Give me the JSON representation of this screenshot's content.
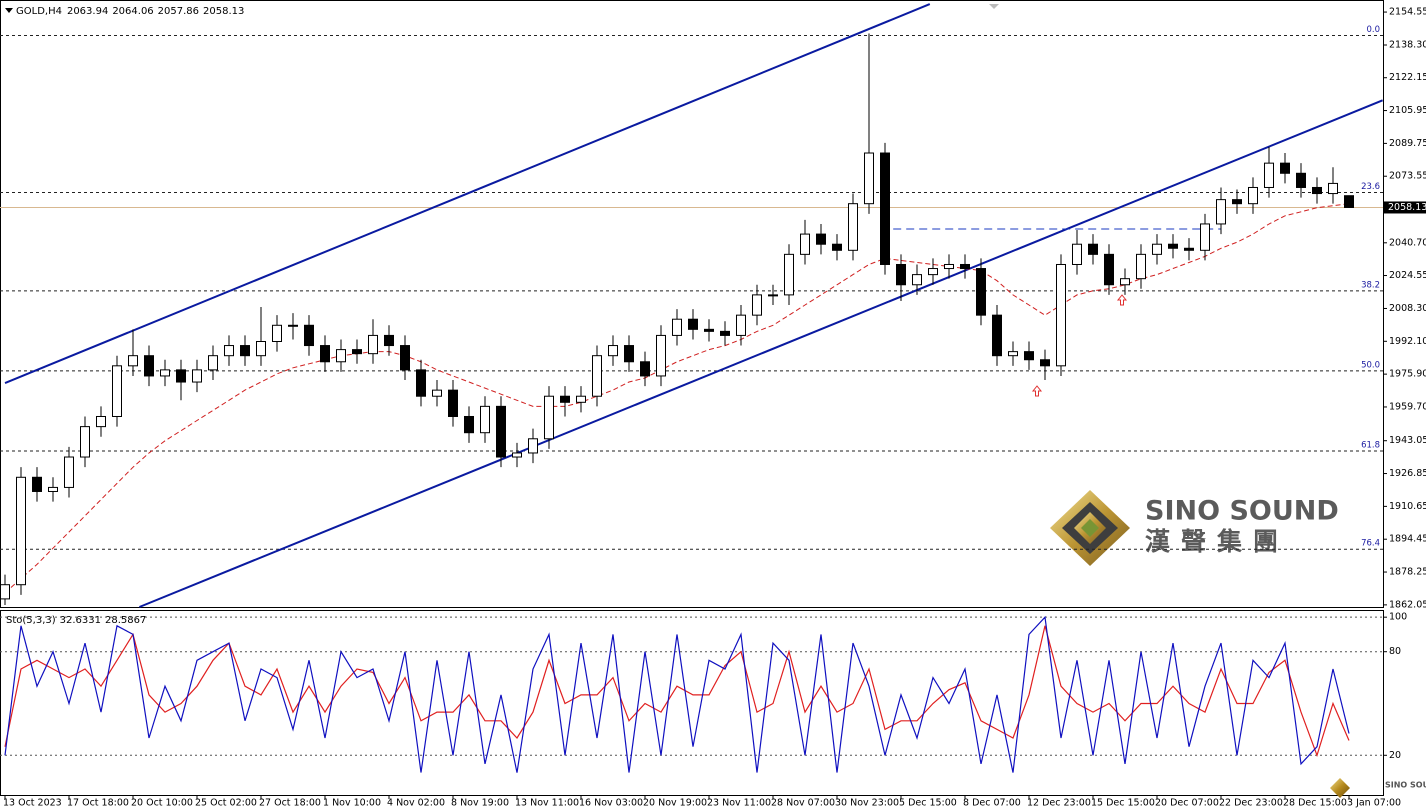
{
  "chart_data": {
    "type": "candlestick",
    "title": "GOLD,H4",
    "categories": [
      "13 Oct 2023",
      null,
      null,
      null,
      "17 Oct 18:00",
      null,
      null,
      null,
      "20 Oct 10:00",
      null,
      null,
      null,
      "25 Oct 02:00",
      null,
      null,
      null,
      "27 Oct 18:00",
      null,
      null,
      null,
      "1 Nov 10:00",
      null,
      null,
      null,
      "4 Nov 02:00",
      null,
      null,
      null,
      "8 Nov 19:00",
      null,
      null,
      null,
      "13 Nov 11:00",
      null,
      null,
      null,
      "16 Nov 03:00",
      null,
      null,
      null,
      "20 Nov 19:00",
      null,
      null,
      null,
      "23 Nov 11:00",
      null,
      null,
      null,
      "28 Nov 07:00",
      null,
      null,
      null,
      "30 Nov 23:00",
      null,
      null,
      null,
      "5 Dec 15:00",
      null,
      null,
      null,
      "8 Dec 07:00",
      null,
      null,
      null,
      "12 Dec 23:00",
      null,
      null,
      null,
      "15 Dec 15:00",
      null,
      null,
      null,
      "20 Dec 07:00",
      null,
      null,
      null,
      "22 Dec 23:00",
      null,
      null,
      null,
      "28 Dec 15:00",
      null,
      null,
      null,
      "3 Jan 07:00"
    ],
    "open": [
      1865,
      1872,
      1925,
      1918,
      1920,
      1935,
      1950,
      1955,
      1980,
      1985,
      1975,
      1978,
      1972,
      1978,
      1985,
      1990,
      1985,
      1992,
      2000,
      2000,
      1990,
      1982,
      1988,
      1986,
      1995,
      1990,
      1978,
      1965,
      1968,
      1955,
      1947,
      1960,
      1935,
      1937,
      1944,
      1965,
      1962,
      1965,
      1985,
      1990,
      1982,
      1975,
      1995,
      2003,
      1998,
      1997,
      1995,
      2005,
      2015,
      2015,
      2035,
      2045,
      2040,
      2037,
      2060,
      2085,
      2030,
      2020,
      2025,
      2028,
      2030,
      2028,
      2005,
      1985,
      1987,
      1983,
      1980,
      2030,
      2040,
      2035,
      2020,
      2023,
      2035,
      2040,
      2038,
      2037,
      2050,
      2062,
      2060,
      2068,
      2080,
      2075,
      2068,
      2065,
      2063.94
    ],
    "high": [
      1877,
      1930,
      1930,
      1925,
      1940,
      1955,
      1960,
      1985,
      1998,
      1990,
      1983,
      1983,
      1983,
      1990,
      1995,
      1995,
      2009,
      2005,
      2006,
      2005,
      1995,
      1993,
      1993,
      2003,
      2000,
      1995,
      1983,
      1973,
      1973,
      1960,
      1965,
      1965,
      1942,
      1949,
      1970,
      1970,
      1970,
      1990,
      1995,
      1995,
      1987,
      2000,
      2008,
      2008,
      2003,
      2002,
      2010,
      2020,
      2020,
      2040,
      2052,
      2050,
      2045,
      2065,
      2144,
      2090,
      2035,
      2030,
      2033,
      2035,
      2035,
      2033,
      2010,
      1992,
      1992,
      1988,
      2035,
      2047,
      2045,
      2040,
      2028,
      2040,
      2045,
      2045,
      2043,
      2055,
      2068,
      2067,
      2073,
      2088,
      2085,
      2080,
      2073,
      2078,
      2064.06
    ],
    "low": [
      1862,
      1867,
      1913,
      1913,
      1915,
      1930,
      1945,
      1950,
      1975,
      1970,
      1970,
      1963,
      1967,
      1973,
      1980,
      1980,
      1980,
      1987,
      1993,
      1985,
      1977,
      1977,
      1981,
      1981,
      1985,
      1973,
      1960,
      1960,
      1950,
      1942,
      1942,
      1930,
      1930,
      1932,
      1939,
      1955,
      1957,
      1960,
      1980,
      1977,
      1970,
      1970,
      1990,
      1993,
      1992,
      1990,
      1990,
      2000,
      2010,
      2010,
      2030,
      2035,
      2032,
      2032,
      2055,
      2025,
      2012,
      2015,
      2020,
      2023,
      2023,
      2000,
      1980,
      1980,
      1978,
      1973,
      1975,
      2025,
      2030,
      2015,
      2015,
      2018,
      2030,
      2033,
      2032,
      2032,
      2045,
      2055,
      2055,
      2063,
      2070,
      2063,
      2060,
      2060,
      2057.86
    ],
    "close": [
      1872,
      1925,
      1918,
      1920,
      1935,
      1950,
      1955,
      1980,
      1985,
      1975,
      1978,
      1972,
      1978,
      1985,
      1990,
      1985,
      1992,
      2000,
      2000,
      1990,
      1982,
      1988,
      1986,
      1995,
      1990,
      1978,
      1965,
      1968,
      1955,
      1947,
      1960,
      1935,
      1937,
      1944,
      1965,
      1962,
      1965,
      1985,
      1990,
      1982,
      1975,
      1995,
      2003,
      1998,
      1997,
      1995,
      2005,
      2015,
      2015,
      2035,
      2045,
      2040,
      2037,
      2060,
      2085,
      2030,
      2020,
      2025,
      2028,
      2030,
      2028,
      2005,
      1985,
      1987,
      1983,
      1980,
      2030,
      2040,
      2035,
      2020,
      2023,
      2035,
      2040,
      2038,
      2037,
      2050,
      2062,
      2060,
      2068,
      2080,
      2075,
      2068,
      2065,
      2070,
      2058.13
    ],
    "color_up": "#ffffff",
    "color_down": "#000000",
    "ylim": [
      1861,
      2160.5
    ],
    "yticks": [
      2154.55,
      {
        "value": 2138.3,
        "label": "2138.30"
      },
      2122.15,
      2105.95,
      2089.75,
      2073.55,
      {
        "value": 2040.7,
        "label": "2040.70"
      },
      2024.55,
      {
        "value": 2008.3,
        "label": "2008.30"
      },
      {
        "value": 1992.1,
        "label": "1992.10"
      },
      {
        "value": 1975.9,
        "label": "1975.90"
      },
      {
        "value": 1959.7,
        "label": "1959.70"
      },
      1943.05,
      1926.85,
      1910.65,
      1894.45,
      1878.25,
      1862.05
    ],
    "ma": {
      "color": "#d02020",
      "values": [
        1868,
        1875,
        1882,
        1890,
        1898,
        1906,
        1914,
        1922,
        1930,
        1937,
        1943,
        1948,
        1953,
        1958,
        1963,
        1968,
        1972,
        1976,
        1979,
        1981,
        1983,
        1985,
        1986,
        1987,
        1987,
        1985,
        1982,
        1978,
        1975,
        1972,
        1969,
        1966,
        1963,
        1960,
        1960,
        1960,
        1962,
        1965,
        1968,
        1972,
        1974,
        1978,
        1982,
        1985,
        1988,
        1990,
        1993,
        1997,
        2000,
        2005,
        2010,
        2015,
        2020,
        2025,
        2030,
        2033,
        2032,
        2031,
        2030,
        2029,
        2028,
        2027,
        2022,
        2015,
        2010,
        2005,
        2010,
        2015,
        2017,
        2018,
        2020,
        2023,
        2025,
        2028,
        2031,
        2034,
        2038,
        2041,
        2045,
        2050,
        2054,
        2056,
        2058,
        2059,
        2060
      ]
    },
    "fib": {
      "color": "#1a1aa0",
      "levels": [
        {
          "label": "0.0",
          "value": 2143
        },
        {
          "label": "23.6",
          "value": 2065.5
        },
        {
          "label": "38.2",
          "value": 2017
        },
        {
          "label": "50.0",
          "value": 1977.5
        },
        {
          "label": "61.8",
          "value": 1938
        },
        {
          "label": "76.4",
          "value": 1889.5
        }
      ]
    },
    "trendlines": {
      "color": "#0a1aa0",
      "lines": [
        {
          "start": {
            "index": 0,
            "price": 1971.5
          },
          "end": {
            "index": 57.8,
            "price": 2158.5
          }
        },
        {
          "start": {
            "index": 8.4,
            "price": 1861
          },
          "end": {
            "index": 86.1,
            "price": 2111
          }
        }
      ]
    },
    "hline": {
      "color": "#1a3ac0",
      "start": 54.7,
      "end": 76,
      "price": 2047.5
    },
    "watermark_title": "SINO SOUND",
    "watermark_subtitle": "漢聲集團",
    "indicator": {
      "title": "Sto(5,3,3)",
      "ylim": [
        -3,
        103
      ],
      "yticks": [
        100,
        80,
        20
      ],
      "grid": true,
      "series": [
        {
          "color": "#1010c0",
          "values": [
            20,
            95,
            60,
            80,
            50,
            85,
            45,
            95,
            90,
            30,
            60,
            40,
            75,
            80,
            85,
            40,
            70,
            65,
            35,
            75,
            30,
            80,
            65,
            70,
            40,
            80,
            10,
            75,
            20,
            80,
            15,
            55,
            10,
            70,
            90,
            20,
            85,
            30,
            90,
            10,
            80,
            20,
            90,
            25,
            75,
            70,
            90,
            10,
            85,
            75,
            20,
            90,
            10,
            85,
            60,
            20,
            55,
            30,
            65,
            50,
            70,
            15,
            55,
            10,
            90,
            100,
            30,
            75,
            20,
            75,
            15,
            80,
            30,
            85,
            25,
            60,
            85,
            20,
            75,
            65,
            85,
            15,
            25,
            70,
            32.6331
          ]
        },
        {
          "color": "#e02020",
          "values": [
            25,
            70,
            75,
            70,
            65,
            70,
            60,
            75,
            90,
            55,
            45,
            50,
            60,
            75,
            85,
            60,
            55,
            70,
            45,
            60,
            45,
            60,
            70,
            68,
            50,
            65,
            40,
            45,
            45,
            55,
            40,
            40,
            30,
            45,
            75,
            50,
            55,
            55,
            65,
            40,
            50,
            45,
            60,
            55,
            55,
            72,
            80,
            45,
            50,
            80,
            45,
            60,
            45,
            50,
            70,
            35,
            40,
            40,
            50,
            58,
            62,
            40,
            35,
            30,
            55,
            95,
            60,
            50,
            45,
            50,
            40,
            50,
            50,
            60,
            50,
            45,
            70,
            50,
            50,
            68,
            75,
            45,
            20,
            50,
            28.5867
          ]
        }
      ]
    }
  }
}
